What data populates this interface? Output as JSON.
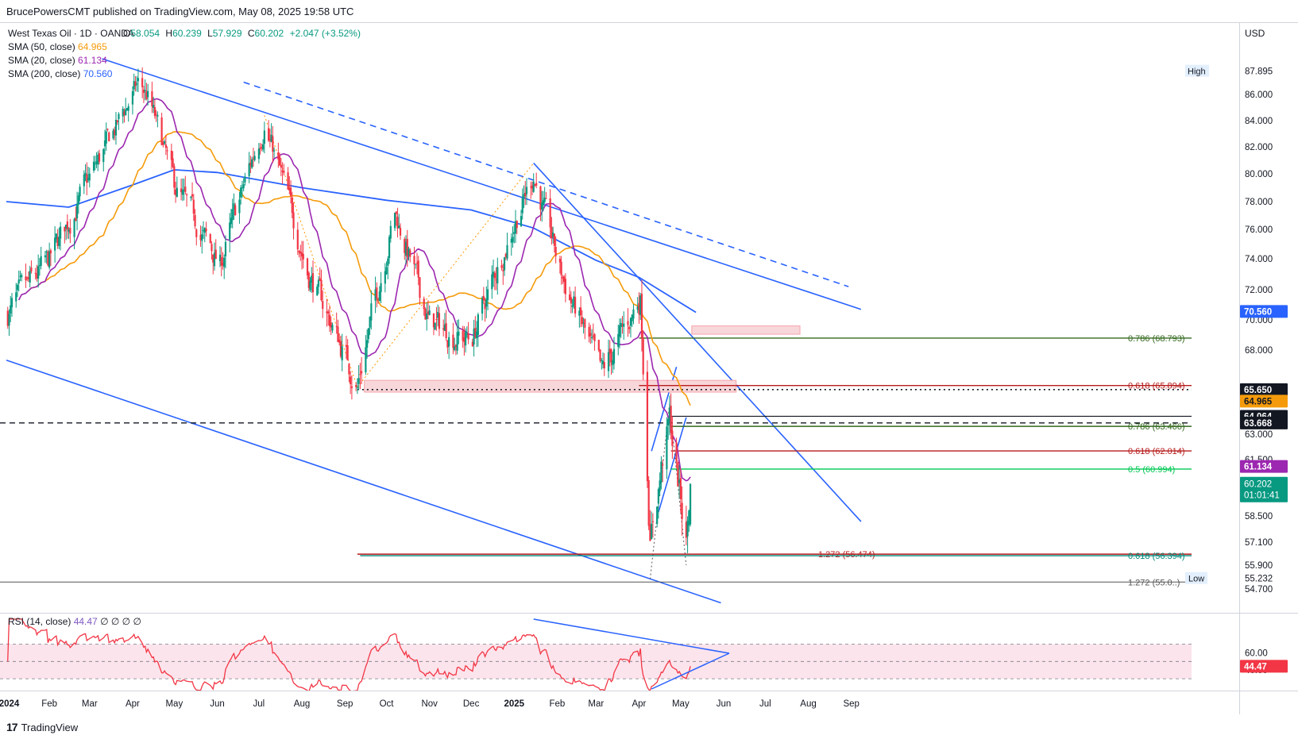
{
  "header": {
    "published": "BrucePowersCMT published on TradingView.com, May 08, 2025 19:58 UTC"
  },
  "footer": {
    "brand": "TradingView",
    "logo_text": "17"
  },
  "legend": {
    "title": "West Texas Oil · 1D · OANDA",
    "ohlc": [
      {
        "k": "O",
        "v": "58.054"
      },
      {
        "k": "H",
        "v": "60.239"
      },
      {
        "k": "L",
        "v": "57.929"
      },
      {
        "k": "C",
        "v": "60.202"
      }
    ],
    "change": "+2.047 (+3.52%)",
    "sma": [
      {
        "label": "SMA (50, close)",
        "value": "64.965",
        "color": "#f59b0b"
      },
      {
        "label": "SMA (20, close)",
        "value": "61.134",
        "color": "#9c27b0"
      },
      {
        "label": "SMA (200, close)",
        "value": "70.560",
        "color": "#2962ff"
      }
    ]
  },
  "colors": {
    "up": "#089981",
    "down": "#f23645",
    "trendline": "#2962ff",
    "rsi": "#f23645",
    "rsi_band": "#fce4ec",
    "zone_fill": "#f8d7da",
    "zone_stroke": "#f5a3ab"
  },
  "chart_data": {
    "type": "candlestick",
    "currency": "USD",
    "y_axis_ticks": [
      "87.895",
      "86.000",
      "84.000",
      "82.000",
      "80.000",
      "78.000",
      "76.000",
      "74.000",
      "72.000",
      "70.000",
      "68.000",
      "63.000",
      "61.500",
      "58.500",
      "57.100",
      "55.900",
      "54.700"
    ],
    "x_axis_ticks": [
      "2024",
      "Feb",
      "Mar",
      "Apr",
      "May",
      "Jun",
      "Jul",
      "Aug",
      "Sep",
      "Oct",
      "Nov",
      "Dec",
      "2025",
      "Feb",
      "Mar",
      "Apr",
      "May",
      "Jun",
      "Jul",
      "Aug",
      "Sep"
    ],
    "price_labels": [
      {
        "text": "70.560",
        "price": 70.56,
        "bg": "#2962ff",
        "fg": "#ffffff"
      },
      {
        "text": "65.650",
        "price": 65.65,
        "bg": "#131722",
        "fg": "#ffffff"
      },
      {
        "text": "64.965",
        "price": 64.965,
        "bg": "#f59b0b",
        "fg": "#131722"
      },
      {
        "text": "64.064",
        "price": 64.064,
        "bg": "#131722",
        "fg": "#ffffff"
      },
      {
        "text": "63.668",
        "price": 63.668,
        "bg": "#131722",
        "fg": "#ffffff"
      },
      {
        "text": "61.134",
        "price": 61.134,
        "bg": "#9c27b0",
        "fg": "#ffffff"
      }
    ],
    "last_price": {
      "value": "60.202",
      "countdown": "01:01:41",
      "price": 60.202
    },
    "high": {
      "label": "High",
      "value": "87.895"
    },
    "low": {
      "label": "Low",
      "value": "55.232"
    },
    "fib_levels": [
      {
        "label": "0.786 (68.793)",
        "price": 68.793,
        "color": "#33691e"
      },
      {
        "label": "0.618 (65.894)",
        "price": 65.894,
        "color": "#b71c1c"
      },
      {
        "label": "0.786 (63.466)",
        "price": 63.466,
        "color": "#33691e"
      },
      {
        "label": "0.618 (62.014)",
        "price": 62.014,
        "color": "#b71c1c"
      },
      {
        "label": "0.5 (60.994)",
        "price": 60.994,
        "color": "#00c853"
      },
      {
        "label": "1.272 (56.474)",
        "price": 56.474,
        "color": "#b71c1c"
      },
      {
        "label": "0.618 (56.394)",
        "price": 56.394,
        "color": "#00897b"
      },
      {
        "label": "1.272 (55.0..)",
        "price": 55.05,
        "color": "#555555"
      }
    ],
    "rsi": {
      "label": "RSI (14, close)",
      "value": "44.47",
      "ticks": [
        "60.00",
        "40.00"
      ],
      "upper": 70,
      "lower": 30
    },
    "anchors": [
      {
        "date": "2024-01-02",
        "close": 70.4
      },
      {
        "date": "2024-02-01",
        "close": 73.8
      },
      {
        "date": "2024-03-01",
        "close": 79.6
      },
      {
        "date": "2024-04-05",
        "close": 86.8
      },
      {
        "date": "2024-04-12",
        "close": 85.8
      },
      {
        "date": "2024-05-01",
        "close": 79.1
      },
      {
        "date": "2024-06-03",
        "close": 73.5
      },
      {
        "date": "2024-07-05",
        "close": 83.9
      },
      {
        "date": "2024-08-05",
        "close": 73.3
      },
      {
        "date": "2024-09-10",
        "close": 65.9
      },
      {
        "date": "2024-10-07",
        "close": 77.2
      },
      {
        "date": "2024-11-01",
        "close": 69.8
      },
      {
        "date": "2024-12-01",
        "close": 68.6
      },
      {
        "date": "2025-01-15",
        "close": 80.0
      },
      {
        "date": "2025-02-03",
        "close": 73.2
      },
      {
        "date": "2025-03-05",
        "close": 66.3
      },
      {
        "date": "2025-04-02",
        "close": 71.5
      },
      {
        "date": "2025-04-09",
        "close": 57.3
      },
      {
        "date": "2025-04-23",
        "close": 63.8
      },
      {
        "date": "2025-05-05",
        "close": 57.1
      },
      {
        "date": "2025-05-08",
        "close": 60.2
      }
    ]
  }
}
